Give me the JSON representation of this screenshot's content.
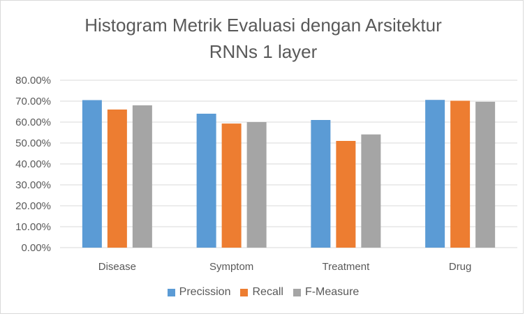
{
  "chart_data": {
    "type": "bar",
    "title_lines": [
      "Histogram Metrik Evaluasi dengan Arsitektur",
      "RNNs 1 layer"
    ],
    "categories": [
      "Disease",
      "Symptom",
      "Treatment",
      "Drug"
    ],
    "series": [
      {
        "name": "Precission",
        "color": "#5b9bd5",
        "values": [
          0.705,
          0.64,
          0.61,
          0.706
        ]
      },
      {
        "name": "Recall",
        "color": "#ed7d31",
        "values": [
          0.66,
          0.593,
          0.51,
          0.702
        ]
      },
      {
        "name": "F-Measure",
        "color": "#a5a5a5",
        "values": [
          0.68,
          0.6,
          0.541,
          0.697
        ]
      }
    ],
    "y_ticks": [
      "0.00%",
      "10.00%",
      "20.00%",
      "30.00%",
      "40.00%",
      "50.00%",
      "60.00%",
      "70.00%",
      "80.00%"
    ],
    "ylim": [
      0,
      0.8
    ],
    "gridlines": true,
    "legend_position": "bottom"
  }
}
